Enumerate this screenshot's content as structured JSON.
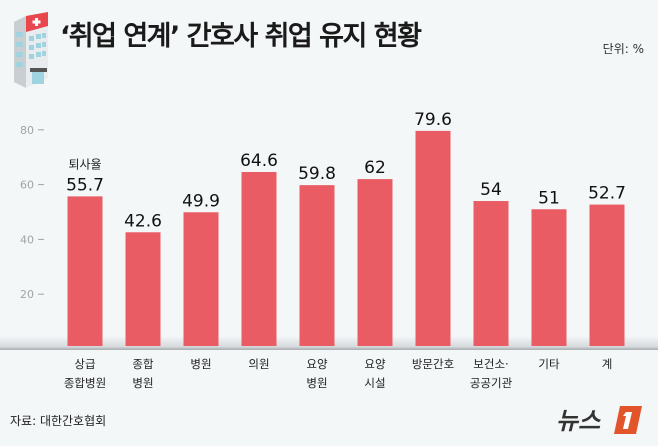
{
  "title": "‘취업 연계’ 간호사 취업 유지 현황",
  "unit": "단위: %",
  "source": "자료: 대한간호협회",
  "logo_text": "뉴스1",
  "chart_data": {
    "type": "bar",
    "title": "‘취업 연계’ 간호사 취업 유지 현황",
    "series_label": "퇴사율",
    "categories": [
      [
        "상급",
        "종합병원"
      ],
      [
        "종합",
        "병원"
      ],
      [
        "병원"
      ],
      [
        "의원"
      ],
      [
        "요양",
        "병원"
      ],
      [
        "요양",
        "시설"
      ],
      [
        "방문간호"
      ],
      [
        "보건소·",
        "공공기관"
      ],
      [
        "기타"
      ],
      [
        "계"
      ]
    ],
    "values": [
      55.7,
      42.6,
      49.9,
      64.6,
      59.8,
      62,
      79.6,
      54,
      51,
      52.7
    ],
    "value_labels": [
      "55.7",
      "42.6",
      "49.9",
      "64.6",
      "59.8",
      "62",
      "79.6",
      "54",
      "51",
      "52.7"
    ],
    "yticks": [
      20,
      40,
      60,
      80
    ],
    "ylim": [
      0,
      85
    ],
    "grid": false,
    "bar_color": "#e95c63"
  }
}
